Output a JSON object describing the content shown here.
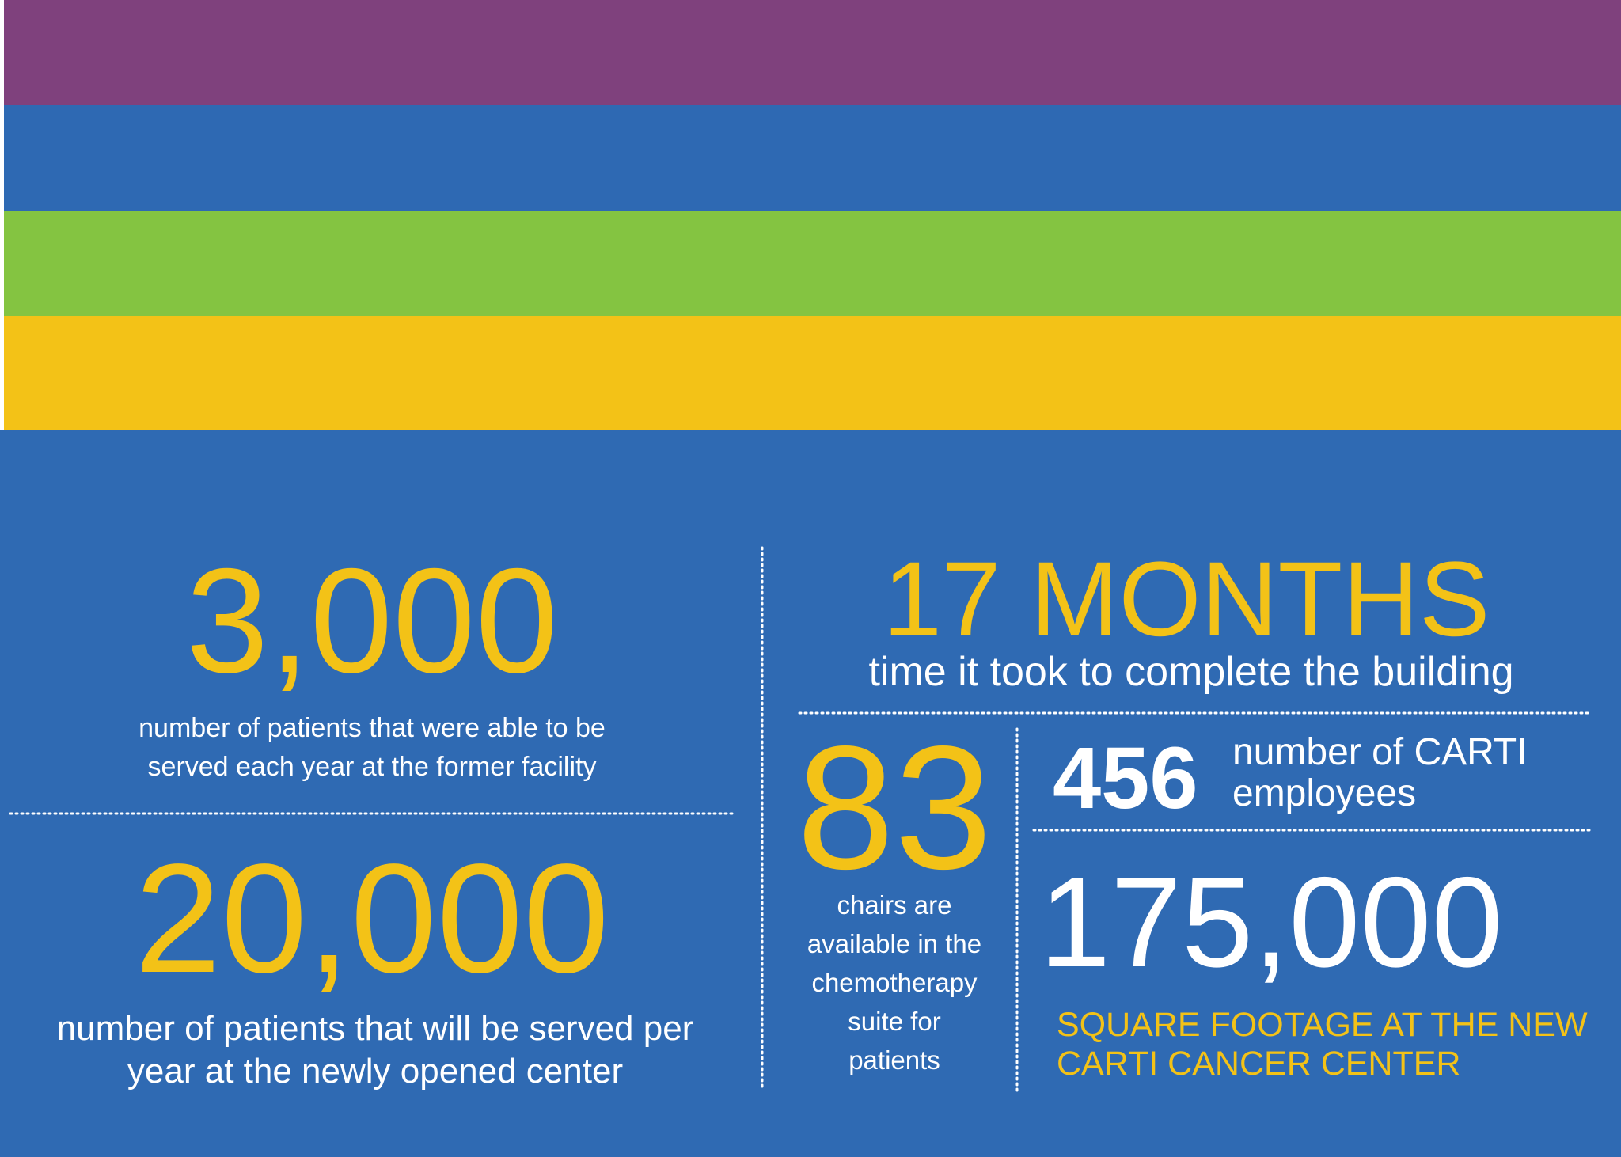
{
  "stats": [
    {
      "value": "3,000",
      "caption": [
        "number of patients that were able to be",
        "served each year at the former facility"
      ]
    },
    {
      "value": "20,000",
      "caption": [
        "number of patients that will be served per",
        "year at the newly opened center"
      ]
    },
    {
      "value": "17 MONTHS",
      "caption": [
        "time it took to complete the building"
      ]
    },
    {
      "value": "83",
      "caption": [
        "chairs are",
        "available in the",
        "chemotherapy",
        "suite for",
        "patients"
      ]
    },
    {
      "value": "456",
      "caption": [
        "number of CARTI",
        "employees"
      ]
    },
    {
      "value": "175,000",
      "caption": [
        "SQUARE FOOTAGE AT THE NEW",
        "CARTI CANCER CENTER"
      ]
    }
  ]
}
